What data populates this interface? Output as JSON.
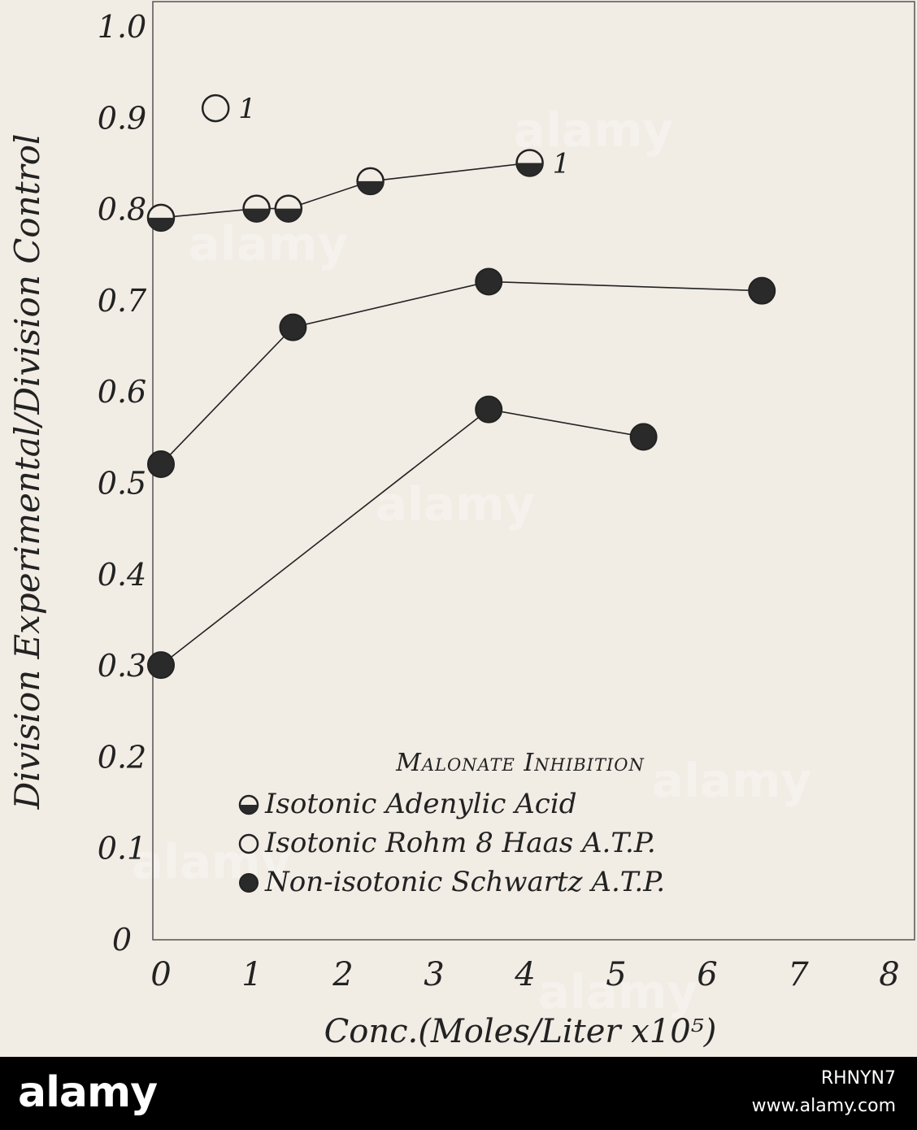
{
  "chart_data": {
    "type": "scatter",
    "ylabel": "Division Experimental/Division Control",
    "xlabel": "Conc.(Moles/Liter x10⁵)",
    "xlim": [
      0,
      8
    ],
    "ylim": [
      0,
      1.0
    ],
    "x_ticks": [
      "0",
      "1",
      "2",
      "3",
      "4",
      "5",
      "6",
      "7",
      "8"
    ],
    "y_ticks": [
      "0",
      "0.1",
      "0.2",
      "0.3",
      "0.4",
      "0.5",
      "0.6",
      "0.7",
      "0.8",
      "0.9",
      "1.0"
    ],
    "legend_title": "Malonate Inhibition",
    "legend_position": "bottom-right",
    "series": [
      {
        "name": "Isotonic Adenylic Acid",
        "marker": "half-filled",
        "connected": true,
        "points": [
          [
            0,
            0.79
          ],
          [
            1.05,
            0.8
          ],
          [
            1.4,
            0.8
          ],
          [
            2.3,
            0.83
          ],
          [
            4.05,
            0.85
          ]
        ]
      },
      {
        "name": "Isotonic Rohm 8 Haas A.T.P.",
        "marker": "open",
        "connected": false,
        "points": [
          [
            0.6,
            0.91
          ]
        ]
      },
      {
        "name": "Non-isotonic Schwartz A.T.P.",
        "marker": "filled",
        "connected": true,
        "points": [
          [
            0,
            0.52
          ],
          [
            1.45,
            0.67
          ],
          [
            3.6,
            0.72
          ],
          [
            6.6,
            0.71
          ]
        ]
      },
      {
        "name": "Non-isotonic Schwartz A.T.P.",
        "marker": "filled",
        "connected": true,
        "points": [
          [
            0,
            0.3
          ],
          [
            3.6,
            0.58
          ],
          [
            5.3,
            0.55
          ]
        ]
      }
    ],
    "annotations": [
      {
        "text": "1",
        "x": 0.6,
        "y": 0.91
      },
      {
        "text": "1",
        "x": 4.05,
        "y": 0.85
      }
    ]
  },
  "watermark": "alamy",
  "footer": {
    "logo": "alamy",
    "image_id": "RHNYN7",
    "url": "www.alamy.com"
  },
  "colors": {
    "background": "#f1ece4",
    "ink": "#222222",
    "footer": "#000000"
  }
}
